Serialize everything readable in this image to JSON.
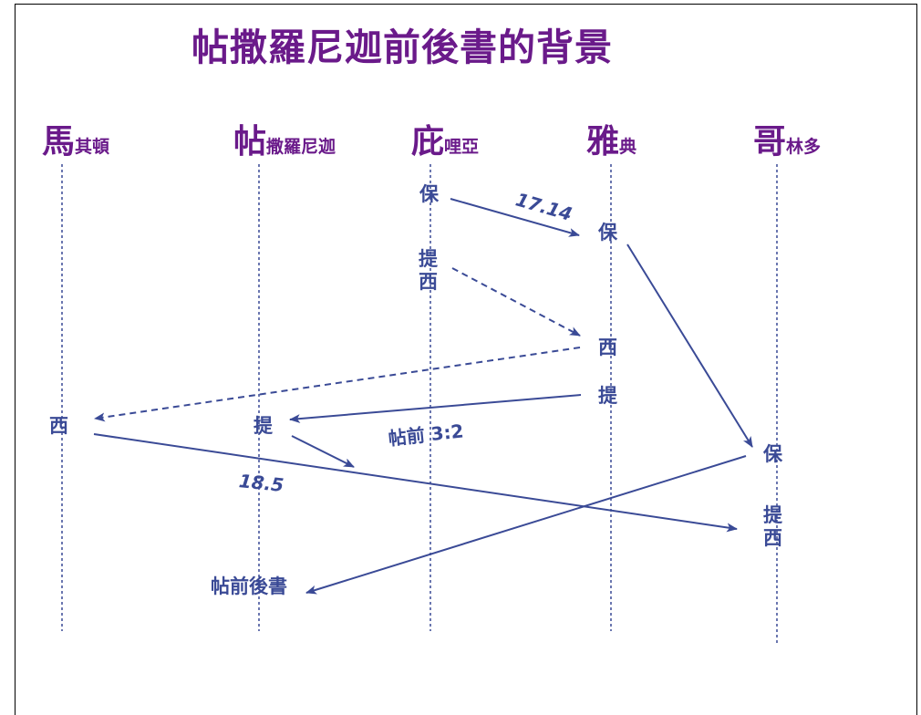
{
  "title": "帖撒羅尼迦前後書的背景",
  "colors": {
    "title": "#6a1a8a",
    "ink": "#3a4a96"
  },
  "cities": [
    {
      "big": "馬",
      "small": "其頓"
    },
    {
      "big": "帖",
      "small": "撒羅尼迦"
    },
    {
      "big": "庇",
      "small": "哩亞"
    },
    {
      "big": "雅",
      "small": "典"
    },
    {
      "big": "哥",
      "small": "林多"
    }
  ],
  "labels": {
    "paul_berea": "保",
    "timothy_berea_1": "提",
    "timothy_berea_2": "西",
    "paul_athens": "保",
    "silas_athens": "西",
    "timothy_athens": "提",
    "silas_macedonia": "西",
    "timothy_thess": "提",
    "paul_corinth": "保",
    "timothy_corinth_1": "提",
    "timothy_corinth_2": "西",
    "letter": "帖前後書",
    "ref_acts17": "17.14",
    "ref_1thess": "帖前 3:2",
    "ref_acts18": "18.5"
  }
}
